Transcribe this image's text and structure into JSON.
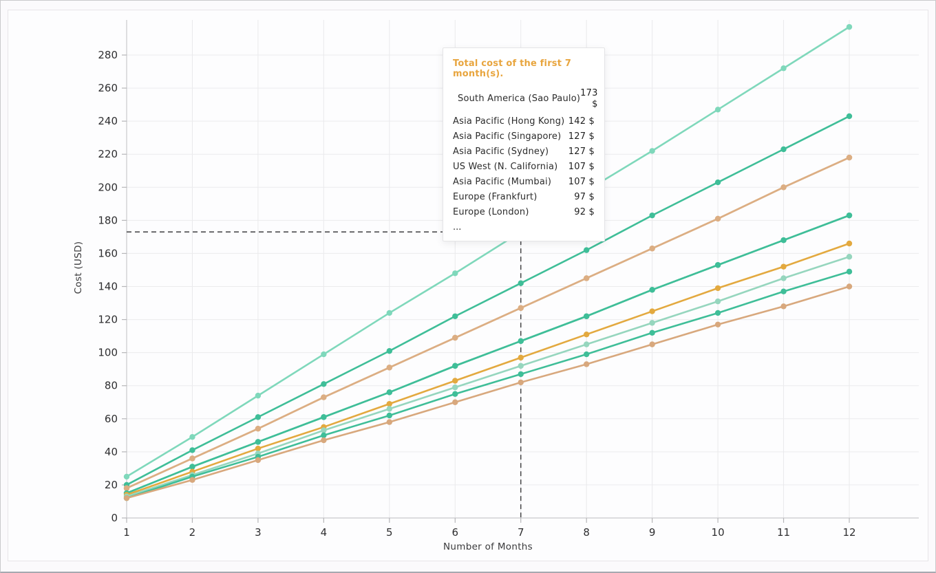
{
  "axes": {
    "x_title": "Number of Months",
    "y_title": "Cost (USD)"
  },
  "tooltip": {
    "title": "Total cost of the first 7 month(s).",
    "title_color": "#e8a53e",
    "hover_marker_color": "#7ed9bc",
    "rows": [
      {
        "label": "South America (Sao Paulo)",
        "value": "173 $",
        "marker": true
      },
      {
        "label": "Asia Pacific (Hong Kong)",
        "value": "142 $",
        "marker": false
      },
      {
        "label": "Asia Pacific (Singapore)",
        "value": "127 $",
        "marker": false
      },
      {
        "label": "Asia Pacific (Sydney)",
        "value": "127 $",
        "marker": false
      },
      {
        "label": "US West (N. California)",
        "value": "107 $",
        "marker": false
      },
      {
        "label": "Asia Pacific (Mumbai)",
        "value": "107 $",
        "marker": false
      },
      {
        "label": "Europe (Frankfurt)",
        "value": "97 $",
        "marker": false
      },
      {
        "label": "Europe (London)",
        "value": "92 $",
        "marker": false
      }
    ],
    "ellipsis": "..."
  },
  "chart_data": {
    "type": "line",
    "title": "",
    "xlabel": "Number of Months",
    "ylabel": "Cost (USD)",
    "x": [
      1,
      2,
      3,
      4,
      5,
      6,
      7,
      8,
      9,
      10,
      11,
      12
    ],
    "x_tick_labels": [
      "1",
      "2",
      "3",
      "4",
      "5",
      "6",
      "7",
      "8",
      "9",
      "10",
      "11",
      "12"
    ],
    "y_ticks": [
      0,
      20,
      40,
      60,
      80,
      100,
      120,
      140,
      160,
      180,
      200,
      220,
      240,
      260,
      280
    ],
    "xlim": [
      1,
      12
    ],
    "ylim": [
      0,
      300
    ],
    "grid": true,
    "legend_position": "tooltip-overlay",
    "crosshair": {
      "month": 7,
      "value": 173,
      "color": "#4b4b4d",
      "style": "dashed"
    },
    "series": [
      {
        "name": "South America (Sao Paulo)",
        "color": "#7fd8bb",
        "values": [
          25,
          49,
          74,
          99,
          124,
          148,
          173,
          198,
          222,
          247,
          272,
          297
        ]
      },
      {
        "name": "Asia Pacific (Hong Kong)",
        "color": "#3fbe98",
        "values": [
          20,
          41,
          61,
          81,
          101,
          122,
          142,
          162,
          183,
          203,
          223,
          243
        ]
      },
      {
        "name": "Asia Pacific (Singapore)",
        "color": "#dcae83",
        "values": [
          18,
          36,
          54,
          73,
          91,
          109,
          127,
          145,
          163,
          181,
          200,
          218
        ]
      },
      {
        "name": "Asia Pacific (Sydney)",
        "color": "#dcae83",
        "values": [
          18,
          36,
          54,
          73,
          91,
          109,
          127,
          145,
          163,
          181,
          200,
          218
        ]
      },
      {
        "name": "US West (N. California)",
        "color": "#3fbe98",
        "values": [
          15,
          31,
          46,
          61,
          76,
          92,
          107,
          122,
          138,
          153,
          168,
          183
        ]
      },
      {
        "name": "Asia Pacific (Mumbai)",
        "color": "#3fbe98",
        "values": [
          15,
          31,
          46,
          61,
          76,
          92,
          107,
          122,
          138,
          153,
          168,
          183
        ]
      },
      {
        "name": "Europe (Frankfurt)",
        "color": "#e3a93f",
        "values": [
          14,
          28,
          42,
          55,
          69,
          83,
          97,
          111,
          125,
          139,
          152,
          166
        ]
      },
      {
        "name": "Europe (London)",
        "color": "#96d6be",
        "values": [
          13,
          26,
          39,
          53,
          66,
          79,
          92,
          105,
          118,
          131,
          145,
          158
        ]
      },
      {
        "name": "...",
        "color": "#3fbe98",
        "values": [
          12,
          25,
          37,
          50,
          62,
          75,
          87,
          99,
          112,
          124,
          137,
          149
        ]
      },
      {
        "name": "...",
        "color": "#d8a87d",
        "values": [
          12,
          23,
          35,
          47,
          58,
          70,
          82,
          93,
          105,
          117,
          128,
          140
        ]
      }
    ]
  }
}
